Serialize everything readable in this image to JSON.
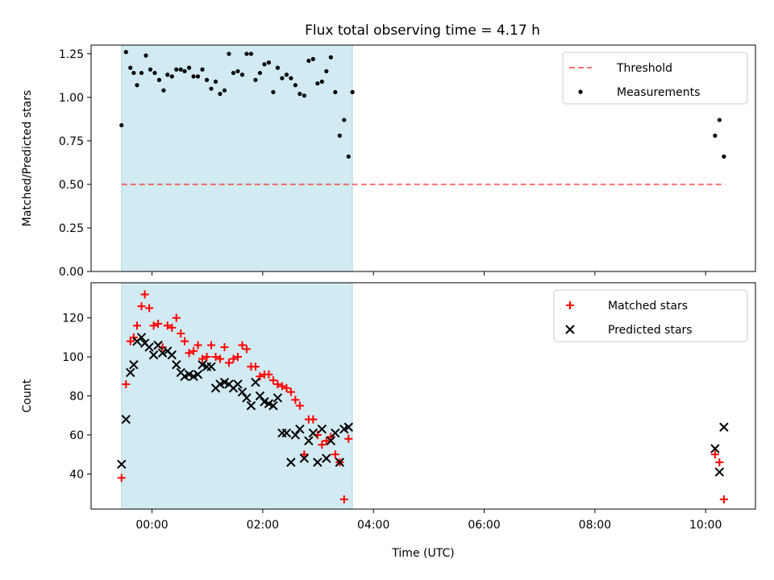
{
  "title": "Flux total observing time = 4.17 h",
  "colors": {
    "shade": "#add8e6",
    "threshold": "#ff0000",
    "measure": "#000000",
    "matched": "#ff0000",
    "predicted": "#000000"
  },
  "chart_data": [
    {
      "type": "scatter",
      "name": "ratio",
      "xlabel": "",
      "ylabel": "Matched/Predicted stars",
      "xlim": [
        -1.1,
        10.9
      ],
      "ylim": [
        0,
        1.3
      ],
      "yticks": [
        0,
        0.25,
        0.5,
        0.75,
        1.0,
        1.25
      ],
      "ytick_labels": [
        "0.00",
        "0.25",
        "0.50",
        "0.75",
        "1.00",
        "1.25"
      ],
      "xticks": [
        0,
        2,
        4,
        6,
        8,
        10
      ],
      "shaded_span": [
        -0.55,
        3.62
      ],
      "threshold": {
        "y": 0.5,
        "x": [
          -0.55,
          10.35
        ],
        "label": "Threshold"
      },
      "legend": {
        "position": "top-right",
        "entries": [
          "Threshold",
          "Measurements"
        ]
      },
      "series": [
        {
          "name": "Measurements",
          "x": [
            -0.55,
            -0.47,
            -0.39,
            -0.33,
            -0.27,
            -0.19,
            -0.11,
            -0.03,
            0.05,
            0.13,
            0.21,
            0.28,
            0.36,
            0.44,
            0.52,
            0.59,
            0.67,
            0.75,
            0.83,
            0.91,
            0.99,
            1.07,
            1.15,
            1.23,
            1.31,
            1.39,
            1.47,
            1.55,
            1.63,
            1.71,
            1.79,
            1.87,
            1.95,
            2.03,
            2.11,
            2.19,
            2.27,
            2.35,
            2.43,
            2.51,
            2.59,
            2.67,
            2.75,
            2.83,
            2.91,
            2.99,
            3.07,
            3.15,
            3.23,
            3.31,
            3.39,
            3.47,
            3.55,
            3.62,
            10.17,
            10.25,
            10.33
          ],
          "y": [
            0.84,
            1.26,
            1.17,
            1.14,
            1.07,
            1.14,
            1.24,
            1.16,
            1.14,
            1.1,
            1.04,
            1.13,
            1.12,
            1.16,
            1.16,
            1.15,
            1.17,
            1.12,
            1.12,
            1.16,
            1.1,
            1.05,
            1.09,
            1.02,
            1.04,
            1.25,
            1.14,
            1.15,
            1.13,
            1.25,
            1.25,
            1.1,
            1.14,
            1.19,
            1.2,
            1.03,
            1.17,
            1.11,
            1.13,
            1.11,
            1.07,
            1.02,
            1.01,
            1.21,
            1.22,
            1.08,
            1.09,
            1.15,
            1.23,
            1.03,
            0.78,
            0.87,
            0.66,
            1.03,
            0.78,
            0.87,
            0.66
          ]
        }
      ]
    },
    {
      "type": "scatter",
      "name": "counts",
      "xlabel": "Time (UTC)",
      "ylabel": "Count",
      "xlim": [
        -1.1,
        10.9
      ],
      "ylim": [
        22,
        138
      ],
      "yticks": [
        40,
        60,
        80,
        100,
        120
      ],
      "ytick_labels": [
        "40",
        "60",
        "80",
        "100",
        "120"
      ],
      "xticks": [
        0,
        2,
        4,
        6,
        8,
        10
      ],
      "xtick_labels": [
        "00:00",
        "02:00",
        "04:00",
        "06:00",
        "08:00",
        "10:00"
      ],
      "shaded_span": [
        -0.55,
        3.62
      ],
      "legend": {
        "position": "top-right",
        "entries": [
          "Matched stars",
          "Predicted stars"
        ]
      },
      "series": [
        {
          "name": "Matched stars",
          "x": [
            -0.55,
            -0.47,
            -0.39,
            -0.33,
            -0.27,
            -0.19,
            -0.13,
            -0.05,
            0.03,
            0.11,
            0.19,
            0.28,
            0.36,
            0.44,
            0.52,
            0.59,
            0.67,
            0.75,
            0.83,
            0.91,
            0.99,
            1.07,
            1.15,
            1.23,
            1.31,
            1.39,
            1.47,
            1.55,
            1.63,
            1.71,
            1.79,
            1.87,
            1.95,
            2.03,
            2.11,
            2.19,
            2.27,
            2.35,
            2.43,
            2.51,
            2.59,
            2.67,
            2.75,
            2.83,
            2.91,
            2.99,
            3.07,
            3.15,
            3.23,
            3.31,
            3.39,
            3.47,
            3.55,
            10.17,
            10.25,
            10.33
          ],
          "y": [
            38,
            86,
            108,
            110,
            116,
            126,
            132,
            125,
            116,
            117,
            105,
            116,
            115,
            120,
            112,
            108,
            102,
            103,
            106,
            99,
            100,
            106,
            100,
            99,
            105,
            97,
            99,
            100,
            106,
            104,
            95,
            95,
            90,
            91,
            91,
            88,
            86,
            85,
            84,
            82,
            78,
            75,
            50,
            68,
            68,
            60,
            55,
            57,
            59,
            50,
            46,
            27,
            58,
            50,
            46,
            27
          ]
        },
        {
          "name": "Predicted stars",
          "x": [
            -0.55,
            -0.47,
            -0.39,
            -0.33,
            -0.27,
            -0.19,
            -0.13,
            -0.05,
            0.03,
            0.11,
            0.19,
            0.28,
            0.36,
            0.44,
            0.52,
            0.59,
            0.67,
            0.75,
            0.83,
            0.91,
            0.99,
            1.07,
            1.15,
            1.23,
            1.31,
            1.39,
            1.47,
            1.55,
            1.63,
            1.71,
            1.79,
            1.87,
            1.95,
            2.03,
            2.11,
            2.19,
            2.27,
            2.35,
            2.43,
            2.51,
            2.59,
            2.67,
            2.75,
            2.83,
            2.91,
            2.99,
            3.07,
            3.15,
            3.23,
            3.31,
            3.39,
            3.47,
            3.55,
            10.17,
            10.25,
            10.33
          ],
          "y": [
            45,
            68,
            92,
            96,
            108,
            110,
            107,
            105,
            101,
            106,
            102,
            103,
            101,
            96,
            92,
            90,
            91,
            90,
            91,
            96,
            95,
            95,
            84,
            86,
            87,
            86,
            84,
            86,
            82,
            79,
            75,
            87,
            80,
            77,
            76,
            75,
            79,
            61,
            61,
            46,
            60,
            63,
            48,
            57,
            61,
            46,
            63,
            48,
            57,
            61,
            46,
            63,
            64,
            53,
            41,
            64
          ]
        }
      ]
    }
  ]
}
